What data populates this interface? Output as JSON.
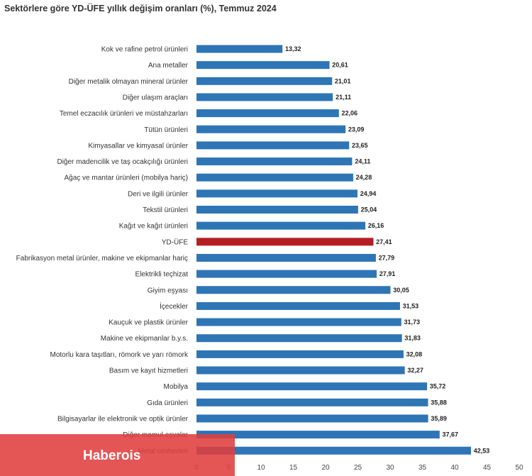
{
  "watermark": {
    "text": "Haberois",
    "color": "#e03e3e"
  },
  "colors": {
    "bar": "#2e75b6",
    "highlight": "#b41f24"
  },
  "chart_data": {
    "type": "bar",
    "orientation": "horizontal",
    "title": "Sektörlere göre YD-ÜFE yıllık değişim oranları (%), Temmuz 2024",
    "xlabel": "",
    "ylabel": "",
    "xlim": [
      0,
      50
    ],
    "ticks": [
      0,
      5,
      10,
      15,
      20,
      25,
      30,
      35,
      40,
      45,
      50
    ],
    "grid": false,
    "legend": "none",
    "highlight_category": "YD-ÜFE",
    "categories": [
      "Kok ve rafine petrol ürünleri",
      "Ana metaller",
      "Diğer metalik olmayan mineral ürünler",
      "Diğer ulaşım araçları",
      "Temel eczacılık ürünleri ve müstahzarları",
      "Tütün ürünleri",
      "Kimyasallar ve kimyasal ürünler",
      "Diğer madencilik ve taş ocakçılığı ürünleri",
      "Ağaç ve mantar ürünleri (mobilya hariç)",
      "Deri ve ilgili ürünler",
      "Tekstil ürünleri",
      "Kağıt ve kağıt ürünleri",
      "YD-ÜFE",
      "Fabrikasyon metal ürünler, makine ve ekipmanlar hariç",
      "Elektrikli teçhizat",
      "Giyim eşyası",
      "İçecekler",
      "Kauçuk ve plastik ürünler",
      "Makine ve ekipmanlar b.y.s.",
      "Motorlu kara taşıtları, römork ve yarı römork",
      "Basım ve kayıt hizmetleri",
      "Mobilya",
      "Gıda ürünleri",
      "Bilgisayarlar ile elektronik ve optik ürünler",
      "Diğer mamul eşyalar",
      "Metal cevherleri"
    ],
    "values": [
      13.32,
      20.61,
      21.01,
      21.11,
      22.06,
      23.09,
      23.65,
      24.11,
      24.28,
      24.94,
      25.04,
      26.16,
      27.41,
      27.79,
      27.91,
      30.05,
      31.53,
      31.73,
      31.83,
      32.08,
      32.27,
      35.72,
      35.88,
      35.89,
      37.67,
      42.53
    ],
    "value_labels": [
      "13,32",
      "20,61",
      "21,01",
      "21,11",
      "22,06",
      "23,09",
      "23,65",
      "24,11",
      "24,28",
      "24,94",
      "25,04",
      "26,16",
      "27,41",
      "27,79",
      "27,91",
      "30,05",
      "31,53",
      "31,73",
      "31,83",
      "32,08",
      "32,27",
      "35,72",
      "35,88",
      "35,89",
      "37,67",
      "42,53"
    ]
  }
}
